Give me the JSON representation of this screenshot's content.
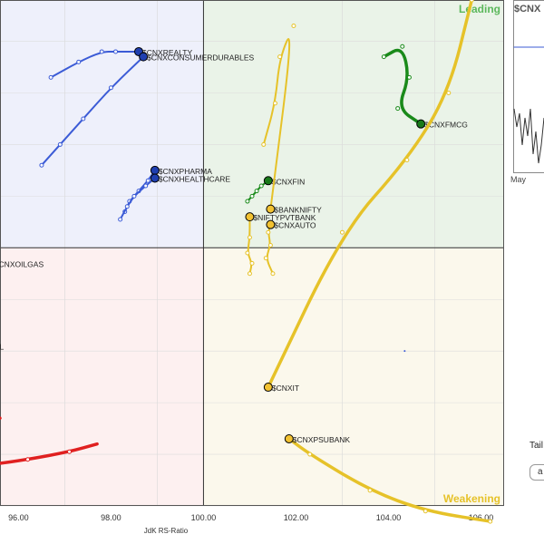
{
  "chart_data": {
    "type": "scatter",
    "title": "",
    "xlabel": "JdK RS-Ratio",
    "ylabel": "",
    "xlim": [
      95.6,
      106.5
    ],
    "ylim": [
      95.0,
      104.8
    ],
    "x_ticks": [
      96,
      98,
      100,
      102,
      104,
      106
    ],
    "x_tick_labels": [
      "96.00",
      "98.00",
      "100.00",
      "102.00",
      "104.00",
      "106.00"
    ],
    "quadrants": {
      "leading": "Leading",
      "weakening": "Weakening",
      "center_x": 100,
      "center_y": 100
    },
    "series": [
      {
        "name": "$CNXREALTY",
        "color": "#3b5bd6",
        "quadrant": "improving",
        "points": [
          [
            96.7,
            103.3
          ],
          [
            97.3,
            103.6
          ],
          [
            97.8,
            103.8
          ],
          [
            98.1,
            103.8
          ],
          [
            98.6,
            103.8
          ]
        ]
      },
      {
        "name": "$CNXCONSUMERDURABLES",
        "color": "#3b5bd6",
        "quadrant": "improving",
        "points": [
          [
            96.5,
            101.6
          ],
          [
            96.9,
            102.0
          ],
          [
            97.4,
            102.5
          ],
          [
            98.0,
            103.1
          ],
          [
            98.7,
            103.7
          ]
        ]
      },
      {
        "name": "$CNXPHARMA",
        "color": "#3b5bd6",
        "quadrant": "improving",
        "points": [
          [
            98.3,
            100.7
          ],
          [
            98.4,
            100.9
          ],
          [
            98.6,
            101.1
          ],
          [
            98.8,
            101.3
          ],
          [
            98.95,
            101.5
          ]
        ]
      },
      {
        "name": "$CNXHEALTHCARE",
        "color": "#3b5bd6",
        "quadrant": "improving",
        "points": [
          [
            98.2,
            100.55
          ],
          [
            98.35,
            100.8
          ],
          [
            98.5,
            101.0
          ],
          [
            98.75,
            101.2
          ],
          [
            98.95,
            101.35
          ]
        ]
      },
      {
        "name": "$CNXFMCG",
        "color": "#1a8a1a",
        "quadrant": "leading",
        "points": [
          [
            103.9,
            103.7
          ],
          [
            104.3,
            103.9
          ],
          [
            104.45,
            103.3
          ],
          [
            104.2,
            102.7
          ],
          [
            104.7,
            102.4
          ]
        ]
      },
      {
        "name": "$CNXFIN",
        "color": "#1a8a1a",
        "quadrant": "leading",
        "points": [
          [
            100.95,
            100.9
          ],
          [
            101.05,
            101.0
          ],
          [
            101.15,
            101.1
          ],
          [
            101.25,
            101.2
          ],
          [
            101.4,
            101.3
          ]
        ]
      },
      {
        "name": "$BANKNIFTY",
        "color": "#e6c229",
        "quadrant": "weakening",
        "points": [
          [
            101.3,
            102.0
          ],
          [
            101.55,
            102.8
          ],
          [
            101.65,
            103.7
          ],
          [
            101.95,
            104.3
          ],
          [
            101.45,
            100.75
          ]
        ]
      },
      {
        "name": "$NIFTYPVTBANK",
        "color": "#e6c229",
        "quadrant": "weakening",
        "points": [
          [
            101.0,
            99.5
          ],
          [
            101.05,
            99.7
          ],
          [
            100.95,
            99.9
          ],
          [
            101.0,
            100.2
          ],
          [
            101.0,
            100.6
          ]
        ]
      },
      {
        "name": "$CNXAUTO",
        "color": "#e6c229",
        "quadrant": "weakening",
        "points": [
          [
            101.5,
            99.5
          ],
          [
            101.35,
            99.8
          ],
          [
            101.45,
            100.05
          ],
          [
            101.4,
            100.3
          ],
          [
            101.45,
            100.45
          ]
        ]
      },
      {
        "name": "$CNXIT",
        "color": "#e6c229",
        "quadrant": "weakening",
        "points": [
          [
            105.8,
            104.8
          ],
          [
            105.3,
            103.0
          ],
          [
            104.4,
            101.7
          ],
          [
            103.0,
            100.3
          ],
          [
            101.4,
            97.3
          ]
        ]
      },
      {
        "name": "$CNXPSUBANK",
        "color": "#e6c229",
        "quadrant": "weakening",
        "points": [
          [
            106.2,
            94.7
          ],
          [
            104.8,
            94.9
          ],
          [
            103.6,
            95.3
          ],
          [
            102.3,
            96.0
          ],
          [
            101.85,
            96.3
          ]
        ]
      },
      {
        "name": "$CNXOILGAS",
        "color": "#e02020",
        "quadrant": "lagging",
        "points": [
          [
            95.4,
            99.7
          ]
        ]
      },
      {
        "name": "AL",
        "color": "#e02020",
        "quadrant": "lagging",
        "points": [
          [
            95.4,
            98.1
          ]
        ]
      },
      {
        "name": "",
        "color": "#e02020",
        "quadrant": "lagging",
        "points": [
          [
            95.3,
            96.6
          ],
          [
            95.6,
            96.7
          ]
        ]
      },
      {
        "name": "",
        "color": "#e02020",
        "quadrant": "lagging",
        "points": [
          [
            95.4,
            95.8
          ],
          [
            96.2,
            95.9
          ],
          [
            97.1,
            96.05
          ],
          [
            97.7,
            96.2
          ]
        ]
      }
    ]
  },
  "side_panel": {
    "mini_title": "$CNX",
    "mini_month": "May",
    "tail_label": "Tail",
    "tail_button": "a"
  },
  "colors": {
    "leading_bg": "#eaf3e8",
    "improving_bg": "#eef0fb",
    "lagging_bg": "#fdf0f0",
    "weakening_bg": "#fbf8ec",
    "leading_text": "#5cb85c",
    "weakening_text": "#e6c229"
  }
}
